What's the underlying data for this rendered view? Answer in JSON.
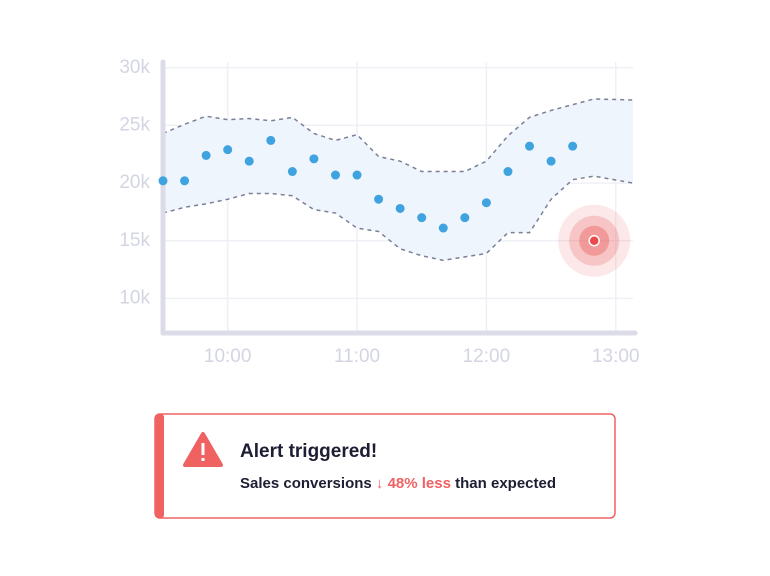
{
  "chart_data": {
    "type": "scatter",
    "x": [
      570,
      580,
      590,
      600,
      610,
      620,
      630,
      640,
      650,
      660,
      670,
      680,
      690,
      700,
      710,
      720,
      730,
      740,
      750,
      760
    ],
    "values": [
      20200,
      20200,
      22400,
      22900,
      21900,
      23700,
      21000,
      22100,
      20700,
      20700,
      18600,
      17800,
      17000,
      16100,
      17000,
      18300,
      21000,
      23200,
      21900,
      23200
    ],
    "color": "#3fa3e0",
    "band": {
      "x": [
        570,
        580,
        590,
        600,
        610,
        620,
        630,
        640,
        650,
        660,
        670,
        680,
        690,
        700,
        710,
        720,
        730,
        740,
        750,
        760,
        770,
        788
      ],
      "upper": [
        24300,
        25100,
        25800,
        25500,
        25600,
        25400,
        25700,
        24300,
        23700,
        24200,
        22300,
        21900,
        21000,
        21000,
        21000,
        21900,
        24100,
        25700,
        26300,
        26800,
        27300,
        27200
      ],
      "lower": [
        17400,
        17900,
        18200,
        18600,
        19100,
        19100,
        18900,
        17700,
        17400,
        16100,
        15800,
        14300,
        13700,
        13300,
        13600,
        13900,
        15700,
        15700,
        18600,
        20300,
        20600,
        20000
      ],
      "fill": "#eef5fc",
      "line_color": "#7c7f96"
    },
    "anomaly": {
      "x": 770,
      "value": 15000,
      "color": "#e94b4b"
    },
    "xlim": [
      570,
      788
    ],
    "xticks": [
      {
        "value": 600,
        "label": "10:00"
      },
      {
        "value": 660,
        "label": "11:00"
      },
      {
        "value": 720,
        "label": "12:00"
      },
      {
        "value": 780,
        "label": "13:00"
      }
    ],
    "ylim": [
      7000,
      30500
    ],
    "yticks": [
      {
        "value": 10000,
        "label": "10k"
      },
      {
        "value": 15000,
        "label": "15k"
      },
      {
        "value": 20000,
        "label": "20k"
      },
      {
        "value": 25000,
        "label": "25k"
      },
      {
        "value": 30000,
        "label": "30k"
      }
    ],
    "grid": true
  },
  "alert": {
    "title": "Alert triggered!",
    "message_start": "Sales conversions",
    "message_highlight": "↓ 48% less",
    "message_end": "than expected",
    "color": "#f06262"
  }
}
